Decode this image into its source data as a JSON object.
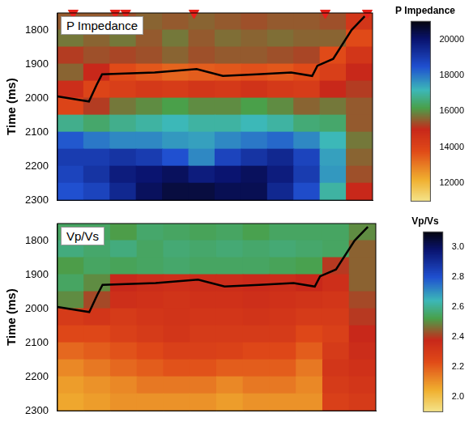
{
  "chart_data": [
    {
      "type": "heatmap",
      "title": "P Impedance",
      "y_label": "Time (ms)",
      "tick_labels": "y",
      "xlim": [
        0,
        12
      ],
      "ylim": [
        1750,
        2300
      ],
      "yticks": [
        1800,
        1900,
        2000,
        2100,
        2200,
        2300
      ],
      "x": [
        0.5,
        1.5,
        2.5,
        3.5,
        4.5,
        5.5,
        6.5,
        7.5,
        8.5,
        9.5,
        10.5,
        11.5
      ],
      "y": [
        1775,
        1825,
        1875,
        1925,
        1975,
        2025,
        2075,
        2125,
        2175,
        2225,
        2275
      ],
      "cells": [
        [
          15500,
          15500,
          15400,
          15600,
          15500,
          15600,
          15500,
          15400,
          15500,
          15500,
          15400,
          14500
        ],
        [
          15800,
          15600,
          15800,
          15500,
          15800,
          15500,
          15700,
          15600,
          15700,
          15600,
          15600,
          13800
        ],
        [
          15200,
          15400,
          15300,
          15400,
          15600,
          15400,
          15500,
          15500,
          15400,
          15300,
          13800,
          14500
        ],
        [
          15600,
          15000,
          13800,
          13600,
          13400,
          13500,
          13600,
          13700,
          13600,
          13800,
          14200,
          15000
        ],
        [
          14800,
          14000,
          14200,
          14400,
          14300,
          14500,
          14400,
          14600,
          14400,
          14300,
          15000,
          15200
        ],
        [
          14000,
          15200,
          15800,
          16000,
          16200,
          16000,
          16000,
          16200,
          16000,
          15600,
          15800,
          15500
        ],
        [
          16800,
          16500,
          16800,
          17000,
          17200,
          17000,
          17000,
          17200,
          17000,
          16600,
          16500,
          15500
        ],
        [
          18400,
          18000,
          17800,
          17800,
          17600,
          17500,
          17800,
          18000,
          18200,
          17800,
          17200,
          15800
        ],
        [
          19000,
          19000,
          19200,
          19000,
          18500,
          17800,
          18800,
          19200,
          19500,
          18800,
          17500,
          15600
        ],
        [
          18800,
          19200,
          19800,
          20000,
          20200,
          19800,
          20000,
          20200,
          19800,
          19000,
          17600,
          15400
        ],
        [
          18500,
          18800,
          19500,
          20200,
          20500,
          20500,
          20300,
          20300,
          19500,
          18600,
          17000,
          15000
        ]
      ],
      "colorbar": {
        "title": "P Impedance",
        "range": [
          11000,
          21000
        ],
        "ticks": [
          12000,
          14000,
          16000,
          18000,
          20000
        ]
      },
      "horizon": {
        "color": "#000000",
        "x": [
          0,
          1.2,
          1.5,
          1.7,
          3.7,
          5.3,
          6.3,
          7.6,
          8.9,
          9.7,
          9.9,
          10.5,
          11.2,
          11.7
        ],
        "y": [
          1995,
          2010,
          1960,
          1930,
          1925,
          1915,
          1935,
          1930,
          1925,
          1935,
          1905,
          1885,
          1800,
          1760
        ]
      },
      "wells": {
        "color": "#e8211a",
        "marker": "triangle",
        "x": [
          0.6,
          2.2,
          2.6,
          5.2,
          10.2,
          11.8
        ]
      }
    },
    {
      "type": "heatmap",
      "title": "Vp/Vs",
      "y_label": "Time (ms)",
      "tick_labels": "y",
      "xlim": [
        0,
        12
      ],
      "ylim": [
        1750,
        2300
      ],
      "yticks": [
        1800,
        1900,
        2000,
        2100,
        2200,
        2300
      ],
      "x": [
        0.5,
        1.5,
        2.5,
        3.5,
        4.5,
        5.5,
        6.5,
        7.5,
        8.5,
        9.5,
        10.5,
        11.5
      ],
      "y": [
        1775,
        1825,
        1875,
        1925,
        1975,
        2025,
        2075,
        2125,
        2175,
        2225,
        2275
      ],
      "cells": [
        [
          2.55,
          2.55,
          2.52,
          2.56,
          2.55,
          2.54,
          2.55,
          2.53,
          2.55,
          2.55,
          2.55,
          2.5
        ],
        [
          2.58,
          2.56,
          2.58,
          2.55,
          2.57,
          2.56,
          2.57,
          2.56,
          2.57,
          2.56,
          2.55,
          2.45
        ],
        [
          2.52,
          2.55,
          2.54,
          2.55,
          2.56,
          2.55,
          2.55,
          2.55,
          2.54,
          2.53,
          2.4,
          2.45
        ],
        [
          2.55,
          2.5,
          2.38,
          2.36,
          2.35,
          2.36,
          2.36,
          2.37,
          2.36,
          2.38,
          2.35,
          2.45
        ],
        [
          2.5,
          2.42,
          2.35,
          2.34,
          2.33,
          2.34,
          2.34,
          2.35,
          2.34,
          2.33,
          2.32,
          2.42
        ],
        [
          2.3,
          2.32,
          2.3,
          2.32,
          2.33,
          2.32,
          2.32,
          2.33,
          2.32,
          2.3,
          2.3,
          2.4
        ],
        [
          2.25,
          2.25,
          2.28,
          2.3,
          2.32,
          2.3,
          2.3,
          2.3,
          2.3,
          2.25,
          2.28,
          2.38
        ],
        [
          2.18,
          2.2,
          2.22,
          2.25,
          2.28,
          2.28,
          2.27,
          2.25,
          2.25,
          2.2,
          2.3,
          2.36
        ],
        [
          2.12,
          2.15,
          2.18,
          2.2,
          2.22,
          2.22,
          2.2,
          2.2,
          2.2,
          2.15,
          2.32,
          2.34
        ],
        [
          2.08,
          2.1,
          2.12,
          2.15,
          2.15,
          2.15,
          2.12,
          2.15,
          2.15,
          2.12,
          2.3,
          2.32
        ],
        [
          2.06,
          2.08,
          2.1,
          2.1,
          2.1,
          2.1,
          2.08,
          2.1,
          2.1,
          2.1,
          2.28,
          2.3
        ]
      ],
      "colorbar": {
        "title": "Vp/Vs",
        "range": [
          1.9,
          3.1
        ],
        "ticks": [
          {
            "value": 2,
            "label": "2.0"
          },
          2.2,
          2.4,
          2.6,
          2.8,
          {
            "value": 3,
            "label": "3.0"
          }
        ]
      },
      "horizon": {
        "color": "#000000",
        "x": [
          0,
          1.2,
          1.5,
          1.7,
          3.7,
          5.3,
          6.3,
          7.6,
          8.9,
          9.7,
          9.9,
          10.5,
          11.2,
          11.7
        ],
        "y": [
          1995,
          2010,
          1960,
          1930,
          1925,
          1915,
          1935,
          1930,
          1925,
          1935,
          1905,
          1885,
          1800,
          1760
        ]
      }
    }
  ]
}
